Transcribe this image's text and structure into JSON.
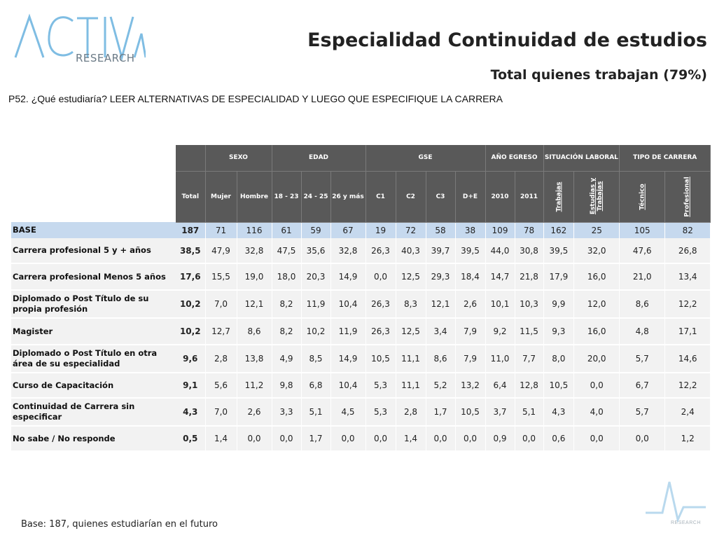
{
  "logo": {
    "brand": "ACTIVA",
    "text": "RESEARCH",
    "color": "#7fbde3"
  },
  "title": "Especialidad Continuidad de estudios",
  "subtitle": "Total quienes trabajan (79%)",
  "question": "P52. ¿Qué estudiaría? LEER ALTERNATIVAS DE ESPECIALIDAD Y LUEGO QUE ESPECIFIQUE LA CARRERA",
  "footnote": "Base: 187, quienes estudiarían en el futuro",
  "footer_logo_text": "RESEARCH",
  "table": {
    "groups": [
      "SEXO",
      "EDAD",
      "GSE",
      "AÑO EGRESO",
      "SITUACIÓN LABORAL",
      "TIPO DE CARRERA"
    ],
    "columns": [
      "Total",
      "Mujer",
      "Hombre",
      "18 - 23",
      "24 - 25",
      "26 y más",
      "C1",
      "C2",
      "C3",
      "D+E",
      "2010",
      "2011",
      "Trabajas",
      "Estudias y Trabajas",
      "Técnico",
      "Profesional"
    ],
    "base": {
      "label": "BASE",
      "values": [
        "187",
        "71",
        "116",
        "61",
        "59",
        "67",
        "19",
        "72",
        "58",
        "38",
        "109",
        "78",
        "162",
        "25",
        "105",
        "82"
      ]
    },
    "rows": [
      {
        "label": "Carrera profesional 5 y + años",
        "values": [
          "38,5",
          "47,9",
          "32,8",
          "47,5",
          "35,6",
          "32,8",
          "26,3",
          "40,3",
          "39,7",
          "39,5",
          "44,0",
          "30,8",
          "39,5",
          "32,0",
          "47,6",
          "26,8"
        ]
      },
      {
        "label": "Carrera profesional Menos 5 años",
        "values": [
          "17,6",
          "15,5",
          "19,0",
          "18,0",
          "20,3",
          "14,9",
          "0,0",
          "12,5",
          "29,3",
          "18,4",
          "14,7",
          "21,8",
          "17,9",
          "16,0",
          "21,0",
          "13,4"
        ]
      },
      {
        "label": "Diplomado o Post Título de su propia profesión",
        "values": [
          "10,2",
          "7,0",
          "12,1",
          "8,2",
          "11,9",
          "10,4",
          "26,3",
          "8,3",
          "12,1",
          "2,6",
          "10,1",
          "10,3",
          "9,9",
          "12,0",
          "8,6",
          "12,2"
        ]
      },
      {
        "label": "Magister",
        "values": [
          "10,2",
          "12,7",
          "8,6",
          "8,2",
          "10,2",
          "11,9",
          "26,3",
          "12,5",
          "3,4",
          "7,9",
          "9,2",
          "11,5",
          "9,3",
          "16,0",
          "4,8",
          "17,1"
        ]
      },
      {
        "label": "Diplomado o Post Título en otra área de su especialidad",
        "values": [
          "9,6",
          "2,8",
          "13,8",
          "4,9",
          "8,5",
          "14,9",
          "10,5",
          "11,1",
          "8,6",
          "7,9",
          "11,0",
          "7,7",
          "8,0",
          "20,0",
          "5,7",
          "14,6"
        ]
      },
      {
        "label": "Curso de Capacitación",
        "values": [
          "9,1",
          "5,6",
          "11,2",
          "9,8",
          "6,8",
          "10,4",
          "5,3",
          "11,1",
          "5,2",
          "13,2",
          "6,4",
          "12,8",
          "10,5",
          "0,0",
          "6,7",
          "12,2"
        ]
      },
      {
        "label": "Continuidad de Carrera sin especificar",
        "values": [
          "4,3",
          "7,0",
          "2,6",
          "3,3",
          "5,1",
          "4,5",
          "5,3",
          "2,8",
          "1,7",
          "10,5",
          "3,7",
          "5,1",
          "4,3",
          "4,0",
          "5,7",
          "2,4"
        ]
      },
      {
        "label": "No sabe / No responde",
        "values": [
          "0,5",
          "1,4",
          "0,0",
          "0,0",
          "1,7",
          "0,0",
          "0,0",
          "1,4",
          "0,0",
          "0,0",
          "0,9",
          "0,0",
          "0,6",
          "0,0",
          "0,0",
          "1,2"
        ]
      }
    ]
  },
  "colors": {
    "header_bg": "#595959",
    "base_row_bg": "#c6d9ee",
    "row_bg": "#f2f2f2"
  }
}
